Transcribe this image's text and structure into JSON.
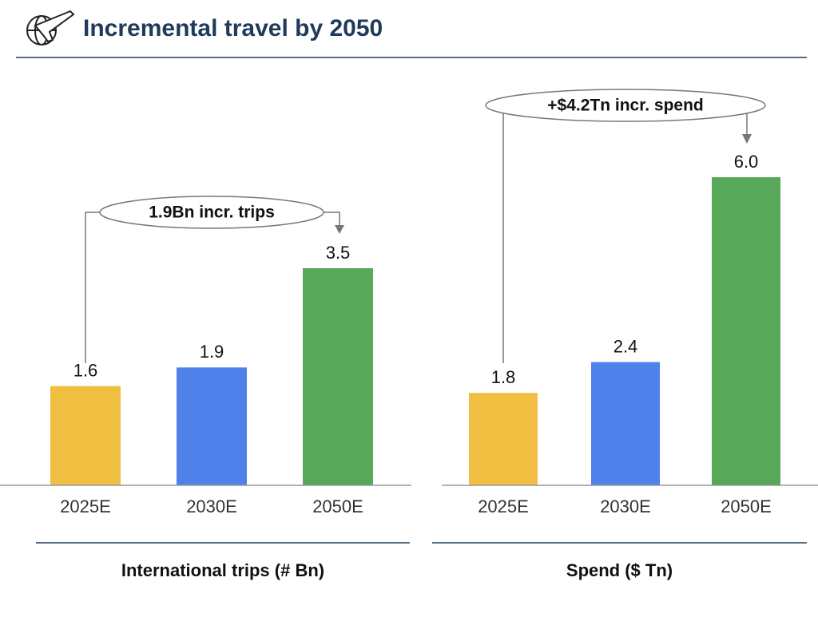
{
  "header": {
    "title": "Incremental travel by 2050"
  },
  "chart_data": [
    {
      "type": "bar",
      "x_label": "International trips (# Bn)",
      "annotation": "1.9Bn incr. trips",
      "categories": [
        "2025E",
        "2030E",
        "2050E"
      ],
      "values": [
        1.6,
        1.9,
        3.5
      ],
      "colors": [
        "#f0be41",
        "#4f81ea",
        "#58a85a"
      ]
    },
    {
      "type": "bar",
      "x_label": "Spend ($ Tn)",
      "annotation": "+$4.2Tn incr. spend",
      "categories": [
        "2025E",
        "2030E",
        "2050E"
      ],
      "values": [
        1.8,
        2.4,
        6.0
      ],
      "value_labels": [
        "1.8",
        "2.4",
        "6.0"
      ],
      "colors": [
        "#f0be41",
        "#4f81ea",
        "#58a85a"
      ]
    }
  ]
}
